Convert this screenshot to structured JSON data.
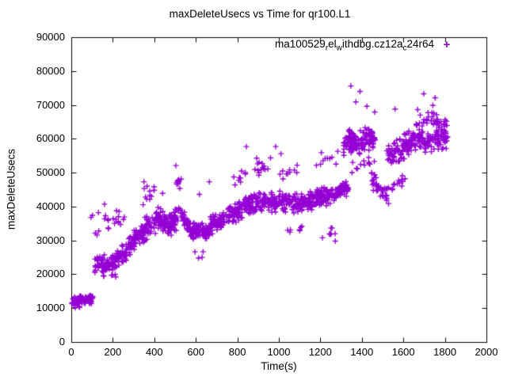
{
  "title": "maxDeleteUsecs vs Time for qr100.L1",
  "axes": {
    "x": {
      "label": "Time(s)",
      "min": 0,
      "max": 2000,
      "ticks": [
        0,
        200,
        400,
        600,
        800,
        1000,
        1200,
        1400,
        1600,
        1800,
        2000
      ]
    },
    "y": {
      "label": "maxDeleteUsecs",
      "min": 0,
      "max": 90000,
      "ticks": [
        0,
        10000,
        20000,
        30000,
        40000,
        50000,
        60000,
        70000,
        80000,
        90000
      ]
    }
  },
  "legend": {
    "series_label_plain": "ma100529_rel_withdbg.cz12a_c24r64",
    "segments": [
      [
        "t",
        "ma100529"
      ],
      [
        "s",
        "r"
      ],
      [
        "t",
        "el"
      ],
      [
        "s",
        "w"
      ],
      [
        "t",
        "ithdbg.cz12a"
      ],
      [
        "s",
        "c"
      ],
      [
        "t",
        "24r64"
      ]
    ],
    "marker": "+"
  },
  "colors": {
    "marker": "#9400D3",
    "axis": "#000000",
    "background": "#FFFFFF",
    "text": "#000000"
  },
  "chart_data": {
    "type": "scatter",
    "title": "maxDeleteUsecs vs Time for qr100.L1",
    "xlabel": "Time(s)",
    "ylabel": "maxDeleteUsecs",
    "xlim": [
      0,
      2000
    ],
    "ylim": [
      0,
      90000
    ],
    "grid": false,
    "legend_position": "top-right-inside",
    "series": [
      {
        "name": "ma100529_rel_withdbg.cz12a_c24r64",
        "marker": "plus",
        "color": "#9400D3",
        "seed": 1337,
        "bands_format": [
          "t_start",
          "t_end",
          "n_points",
          "value_center_start",
          "value_center_end",
          "value_spread"
        ],
        "bands": [
          [
            2,
            105,
            88,
            12300,
            12800,
            1600
          ],
          [
            2,
            60,
            4,
            10300,
            10600,
            600
          ],
          [
            112,
            215,
            70,
            22800,
            23600,
            3100
          ],
          [
            215,
            268,
            45,
            24500,
            26500,
            3200
          ],
          [
            150,
            240,
            6,
            19600,
            20100,
            900
          ],
          [
            95,
            265,
            20,
            33000,
            36500,
            4200
          ],
          [
            268,
            340,
            60,
            28500,
            31500,
            3600
          ],
          [
            340,
            405,
            55,
            32500,
            35500,
            4200
          ],
          [
            340,
            400,
            10,
            43000,
            44500,
            3200
          ],
          [
            405,
            470,
            60,
            37000,
            34200,
            3600
          ],
          [
            470,
            540,
            62,
            34500,
            38500,
            3800
          ],
          [
            505,
            545,
            8,
            47500,
            48500,
            3400
          ],
          [
            540,
            575,
            30,
            36500,
            34500,
            3200
          ],
          [
            575,
            665,
            80,
            32800,
            32500,
            2900
          ],
          [
            590,
            650,
            4,
            25500,
            26500,
            1500
          ],
          [
            665,
            745,
            70,
            34500,
            36500,
            3300
          ],
          [
            745,
            835,
            75,
            36800,
            39500,
            3500
          ],
          [
            770,
            840,
            8,
            47000,
            49500,
            2500
          ],
          [
            835,
            950,
            90,
            40500,
            42000,
            3400
          ],
          [
            880,
            960,
            12,
            50500,
            53500,
            2500
          ],
          [
            950,
            1080,
            95,
            41500,
            41000,
            3400
          ],
          [
            1000,
            1090,
            10,
            49500,
            51500,
            2200
          ],
          [
            1080,
            1165,
            70,
            40800,
            42000,
            3300
          ],
          [
            1040,
            1120,
            6,
            32500,
            34000,
            1800
          ],
          [
            1165,
            1270,
            90,
            42500,
            43500,
            3100
          ],
          [
            1180,
            1280,
            8,
            52000,
            54500,
            2500
          ],
          [
            1200,
            1285,
            6,
            31500,
            34000,
            2300
          ],
          [
            1270,
            1335,
            70,
            44000,
            45500,
            2300
          ],
          [
            1310,
            1345,
            25,
            57000,
            61500,
            3600
          ],
          [
            1335,
            1465,
            120,
            58500,
            60500,
            3900
          ],
          [
            1350,
            1460,
            12,
            51500,
            53000,
            2100
          ],
          [
            1445,
            1532,
            45,
            47500,
            43500,
            3300
          ],
          [
            1520,
            1620,
            60,
            55500,
            57500,
            4100
          ],
          [
            1540,
            1625,
            12,
            46500,
            48500,
            2600
          ],
          [
            1600,
            1700,
            70,
            58500,
            60000,
            3900
          ],
          [
            1660,
            1760,
            25,
            64500,
            66500,
            2900
          ],
          [
            1700,
            1815,
            80,
            59000,
            60500,
            3600
          ],
          [
            1760,
            1812,
            15,
            63500,
            65500,
            2600
          ]
        ],
        "outliers": [
          [
            1347,
            75600
          ],
          [
            1391,
            74000
          ],
          [
            1371,
            70900
          ],
          [
            1424,
            69600
          ],
          [
            1462,
            67900
          ],
          [
            843,
            57700
          ],
          [
            985,
            57700
          ],
          [
            893,
            54300
          ],
          [
            920,
            52700
          ],
          [
            947,
            51100
          ],
          [
            1698,
            73300
          ],
          [
            1753,
            72100
          ],
          [
            1669,
            68600
          ],
          [
            1560,
            68800
          ],
          [
            1742,
            69900
          ],
          [
            504,
            52100
          ],
          [
            508,
            46600
          ],
          [
            160,
            40700
          ],
          [
            131,
            38200
          ],
          [
            102,
            37400
          ],
          [
            95,
            36800
          ],
          [
            665,
            47300
          ],
          [
            820,
            50500
          ],
          [
            1010,
            55600
          ],
          [
            1205,
            55900
          ],
          [
            1271,
            32000
          ],
          [
            1272,
            29800
          ],
          [
            1111,
            34200
          ],
          [
            350,
            47300
          ],
          [
            365,
            46000
          ],
          [
            398,
            44800
          ],
          [
            1284,
            56300
          ],
          [
            617,
            43600
          ],
          [
            440,
            43900
          ]
        ]
      }
    ]
  }
}
